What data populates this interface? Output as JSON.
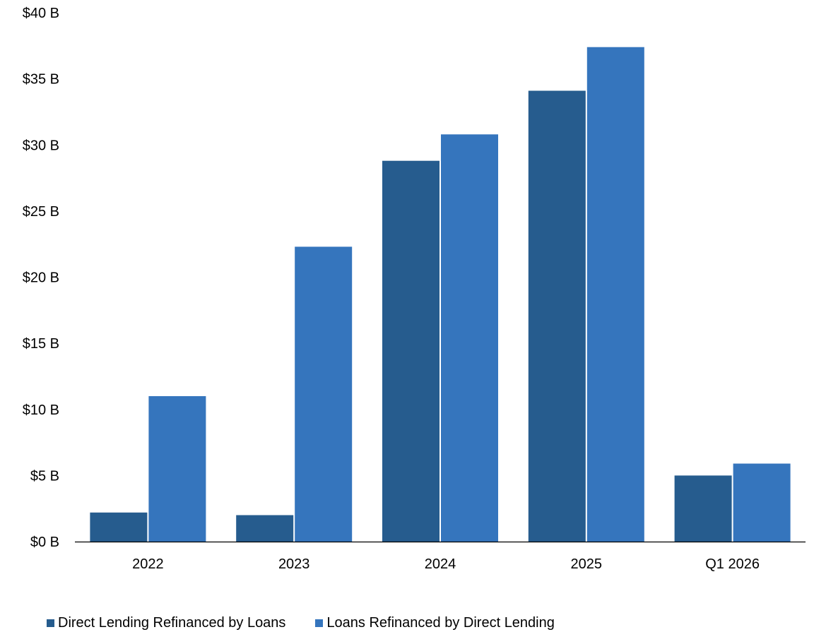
{
  "chart_data": {
    "type": "bar",
    "title": "",
    "xlabel": "",
    "ylabel": "",
    "categories": [
      "2022",
      "2023",
      "2024",
      "2025",
      "Q1 2026"
    ],
    "series": [
      {
        "name": "Direct Lending Refinanced by Loans",
        "color": "#265C8E",
        "values": [
          2.2,
          2.0,
          28.8,
          34.1,
          5.0
        ]
      },
      {
        "name": "Loans Refinanced by Direct Lending",
        "color": "#3575BD",
        "values": [
          11.0,
          22.3,
          30.8,
          37.4,
          5.9
        ]
      }
    ],
    "ylim": [
      0,
      40
    ],
    "yticks": [
      {
        "value": 0,
        "label": "$0 B"
      },
      {
        "value": 5,
        "label": "$5 B"
      },
      {
        "value": 10,
        "label": "$10 B"
      },
      {
        "value": 15,
        "label": "$15 B"
      },
      {
        "value": 20,
        "label": "$20 B"
      },
      {
        "value": 25,
        "label": "$25 B"
      },
      {
        "value": 30,
        "label": "$30 B"
      },
      {
        "value": 35,
        "label": "$35 B"
      },
      {
        "value": 40,
        "label": "$40 B"
      }
    ],
    "grid": false,
    "legend_position": "bottom-left"
  }
}
